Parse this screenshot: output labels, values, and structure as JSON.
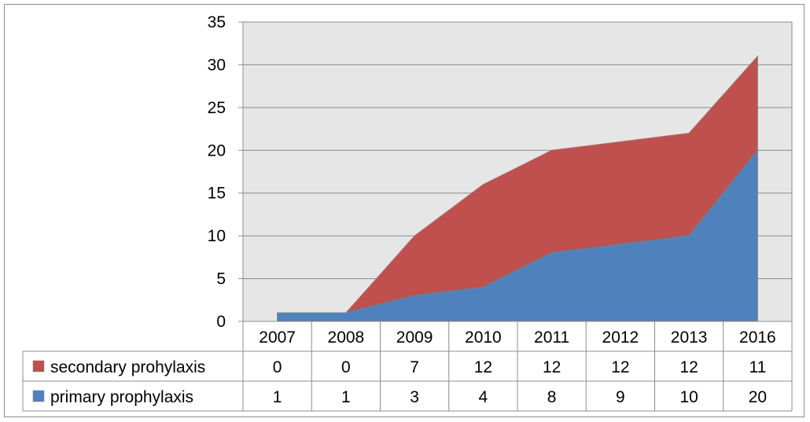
{
  "chart_data": {
    "type": "area",
    "stacked": true,
    "categories": [
      "2007",
      "2008",
      "2009",
      "2010",
      "2011",
      "2012",
      "2013",
      "2016"
    ],
    "series": [
      {
        "name": "primary prophylaxis",
        "values": [
          1,
          1,
          3,
          4,
          8,
          9,
          10,
          20
        ],
        "color": "#4f81bd"
      },
      {
        "name": "secondary prohylaxis",
        "values": [
          0,
          0,
          7,
          12,
          12,
          12,
          12,
          11
        ],
        "color": "#c0504d"
      }
    ],
    "ylim": [
      0,
      35
    ],
    "yticks": [
      "0",
      "5",
      "10",
      "15",
      "20",
      "25",
      "30",
      "35"
    ],
    "grid": true,
    "plot_background": "#e6e6e6",
    "legend": "data-table-left",
    "table_rows_order": [
      "secondary prohylaxis",
      "primary prophylaxis"
    ]
  }
}
